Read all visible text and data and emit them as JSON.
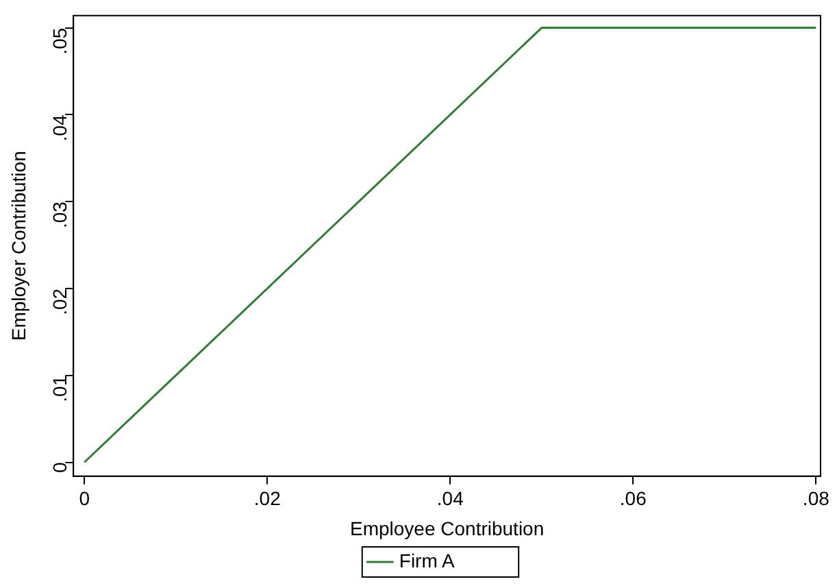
{
  "chart_data": {
    "type": "line",
    "xlabel": "Employee Contribution",
    "ylabel": "Employer Contribution",
    "x": [
      0,
      0.05,
      0.08
    ],
    "series": [
      {
        "name": "Firm A",
        "color": "#2e7d32",
        "values": [
          0,
          0.05,
          0.05
        ]
      }
    ],
    "xlim": [
      -0.0012,
      0.0805
    ],
    "ylim": [
      -0.0016,
      0.0514
    ],
    "xticks": [
      {
        "value": 0,
        "label": "0"
      },
      {
        "value": 0.02,
        "label": ".02"
      },
      {
        "value": 0.04,
        "label": ".04"
      },
      {
        "value": 0.06,
        "label": ".06"
      },
      {
        "value": 0.08,
        "label": ".08"
      }
    ],
    "yticks": [
      {
        "value": 0,
        "label": "0"
      },
      {
        "value": 0.01,
        "label": ".01"
      },
      {
        "value": 0.02,
        "label": ".02"
      },
      {
        "value": 0.03,
        "label": ".03"
      },
      {
        "value": 0.04,
        "label": ".04"
      },
      {
        "value": 0.05,
        "label": ".05"
      }
    ],
    "grid": false,
    "legend": "bottom",
    "marker": "none",
    "line_style": "solid"
  }
}
